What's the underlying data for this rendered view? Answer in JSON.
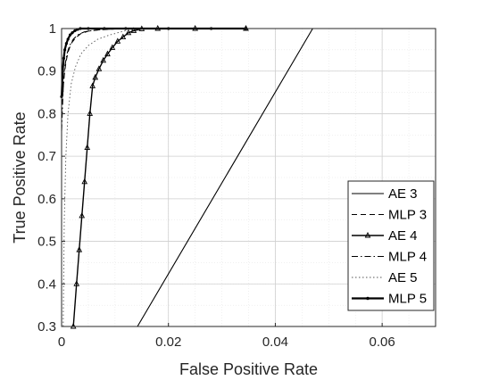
{
  "chart_data": {
    "type": "line",
    "title": "",
    "xlabel": "False Positive Rate",
    "ylabel": "True Positive Rate",
    "xlim": [
      0,
      0.07
    ],
    "ylim": [
      0.3,
      1
    ],
    "xticks": [
      0,
      0.02,
      0.04,
      0.06
    ],
    "xtick_labels": [
      "0",
      "0.02",
      "0.04",
      "0.06"
    ],
    "yticks": [
      0.3,
      0.4,
      0.5,
      0.6,
      0.7,
      0.8,
      0.9,
      1
    ],
    "ytick_labels": [
      "0.3",
      "0.4",
      "0.5",
      "0.6",
      "0.7",
      "0.8",
      "0.9",
      "1"
    ],
    "grid": true,
    "minor_grid": true,
    "legend_position": "right",
    "series": [
      {
        "name": "AE 3",
        "style": "solid",
        "marker": "none",
        "x": [
          0.0142,
          0.047,
          0.07
        ],
        "y": [
          0.3,
          1.0,
          1.0
        ]
      },
      {
        "name": "MLP 3",
        "style": "dashed",
        "marker": "none",
        "x": [
          0,
          0.0004,
          0.0008,
          0.0012,
          0.0018,
          0.0026,
          0.0036,
          0.005,
          0.007,
          0.01,
          0.015,
          0.02,
          0.025
        ],
        "y": [
          0.8,
          0.88,
          0.92,
          0.945,
          0.965,
          0.978,
          0.988,
          0.994,
          0.997,
          0.999,
          1.0,
          1.0,
          1.0
        ]
      },
      {
        "name": "AE 4",
        "style": "solid",
        "marker": "triangle",
        "x": [
          0.0022,
          0.0028,
          0.0033,
          0.0038,
          0.0043,
          0.0048,
          0.0053,
          0.0058,
          0.0063,
          0.007,
          0.0078,
          0.0086,
          0.0095,
          0.0105,
          0.0115,
          0.0125,
          0.0135,
          0.015,
          0.018,
          0.025,
          0.0345
        ],
        "y": [
          0.3,
          0.4,
          0.48,
          0.56,
          0.64,
          0.72,
          0.8,
          0.865,
          0.885,
          0.905,
          0.925,
          0.94,
          0.955,
          0.97,
          0.98,
          0.99,
          0.995,
          0.999,
          1.0,
          1.0,
          1.0
        ]
      },
      {
        "name": "MLP 4",
        "style": "dashdot",
        "marker": "none",
        "x": [
          0,
          0.0003,
          0.0006,
          0.001,
          0.0015,
          0.0022,
          0.003,
          0.0042,
          0.006,
          0.008,
          0.011,
          0.015,
          0.02
        ],
        "y": [
          0.76,
          0.86,
          0.91,
          0.94,
          0.96,
          0.975,
          0.985,
          0.992,
          0.996,
          0.998,
          1.0,
          1.0,
          1.0
        ]
      },
      {
        "name": "AE 5",
        "style": "dotted",
        "marker": "none",
        "x": [
          0.0003,
          0.0005,
          0.0008,
          0.0012,
          0.0018,
          0.0026,
          0.0036,
          0.005,
          0.0068,
          0.009,
          0.012,
          0.016,
          0.02
        ],
        "y": [
          0.3,
          0.55,
          0.7,
          0.8,
          0.87,
          0.91,
          0.94,
          0.96,
          0.975,
          0.985,
          0.995,
          1.0,
          1.0
        ]
      },
      {
        "name": "MLP 5",
        "style": "solid",
        "marker": "dot",
        "x": [
          0,
          0.0002,
          0.0004,
          0.0006,
          0.0009,
          0.0012,
          0.0016,
          0.002,
          0.0025,
          0.003,
          0.0035,
          0.005,
          0.008,
          0.012,
          0.02,
          0.028,
          0.0345
        ],
        "y": [
          0.84,
          0.9,
          0.93,
          0.95,
          0.965,
          0.975,
          0.985,
          0.99,
          0.995,
          0.998,
          1.0,
          1.0,
          1.0,
          1.0,
          1.0,
          1.0,
          1.0
        ]
      }
    ]
  }
}
